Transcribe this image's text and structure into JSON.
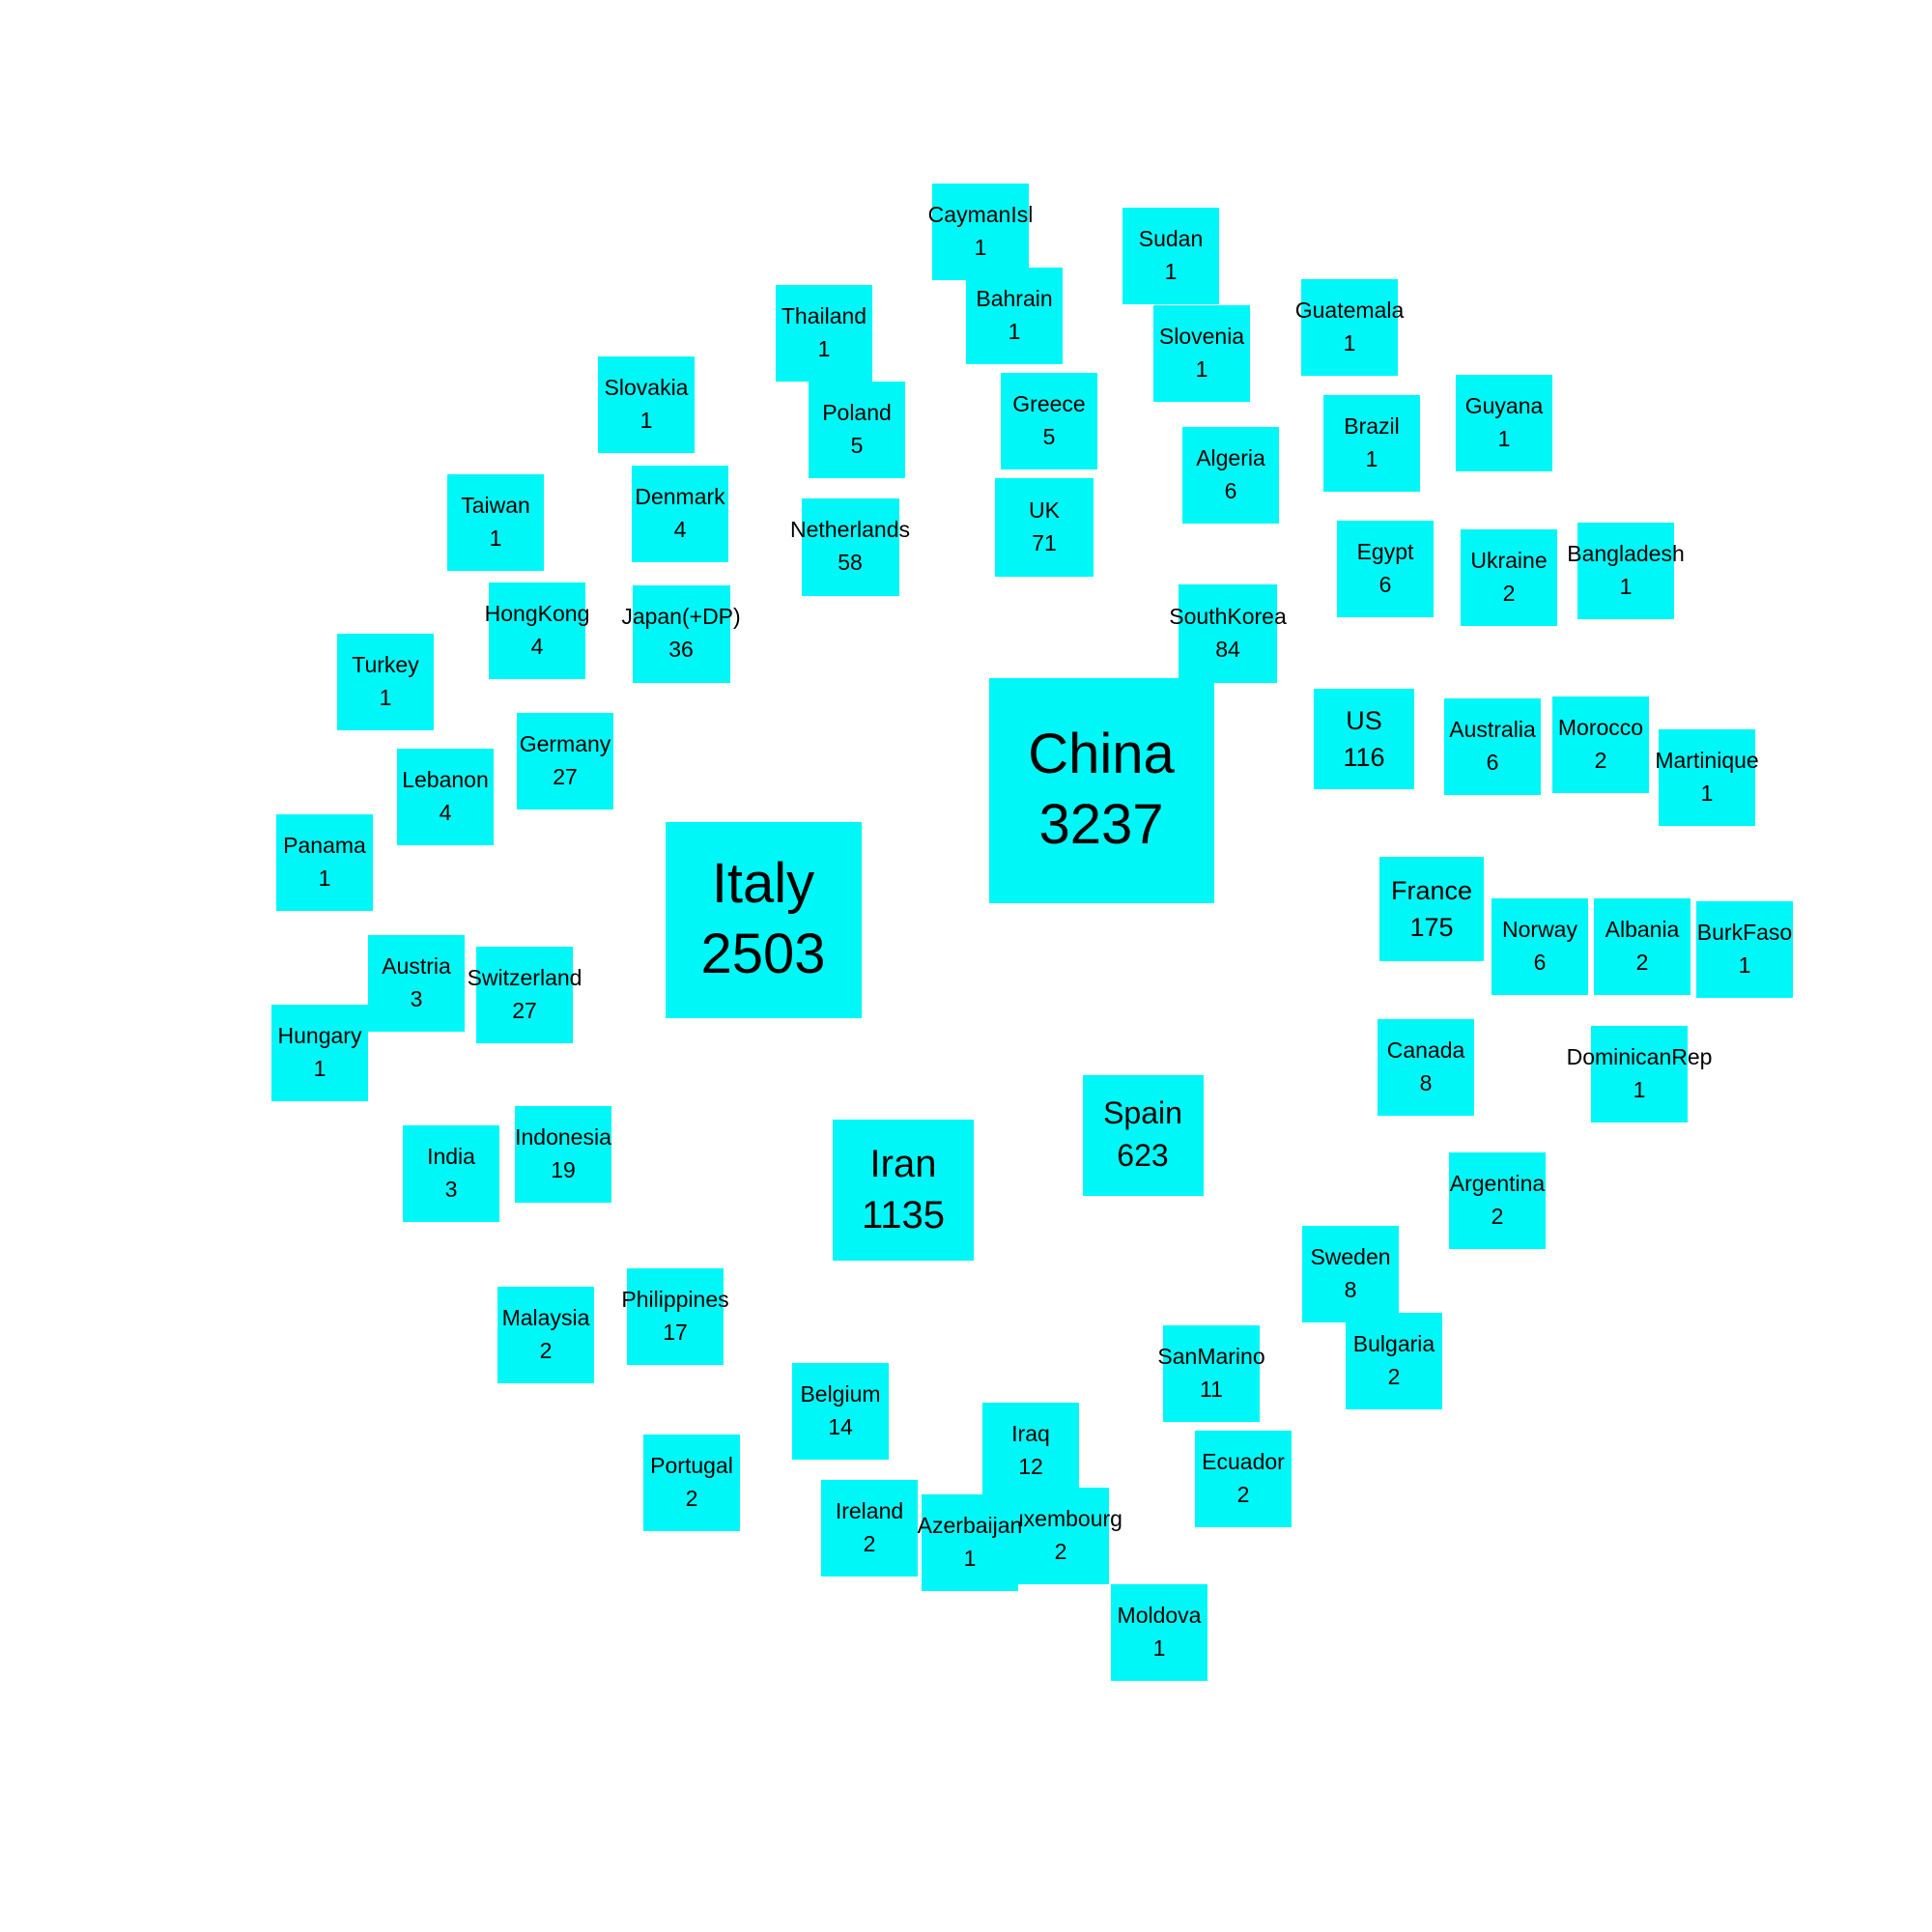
{
  "colors": {
    "node_fill": "#00f7f7",
    "background": "#ffffff",
    "text": "#000000"
  },
  "nodes": [
    {
      "name": "China",
      "value": 3237
    },
    {
      "name": "Italy",
      "value": 2503
    },
    {
      "name": "Iran",
      "value": 1135
    },
    {
      "name": "Spain",
      "value": 623
    },
    {
      "name": "France",
      "value": 175
    },
    {
      "name": "US",
      "value": 116
    },
    {
      "name": "SouthKorea",
      "value": 84
    },
    {
      "name": "UK",
      "value": 71
    },
    {
      "name": "Netherlands",
      "value": 58
    },
    {
      "name": "Japan(+DP)",
      "value": 36
    },
    {
      "name": "Germany",
      "value": 27
    },
    {
      "name": "Switzerland",
      "value": 27
    },
    {
      "name": "Indonesia",
      "value": 19
    },
    {
      "name": "Philippines",
      "value": 17
    },
    {
      "name": "Belgium",
      "value": 14
    },
    {
      "name": "Iraq",
      "value": 12
    },
    {
      "name": "SanMarino",
      "value": 11
    },
    {
      "name": "Canada",
      "value": 8
    },
    {
      "name": "Sweden",
      "value": 8
    },
    {
      "name": "Algeria",
      "value": 6
    },
    {
      "name": "Egypt",
      "value": 6
    },
    {
      "name": "Australia",
      "value": 6
    },
    {
      "name": "Norway",
      "value": 6
    },
    {
      "name": "Poland",
      "value": 5
    },
    {
      "name": "Greece",
      "value": 5
    },
    {
      "name": "Denmark",
      "value": 4
    },
    {
      "name": "HongKong",
      "value": 4
    },
    {
      "name": "Lebanon",
      "value": 4
    },
    {
      "name": "Austria",
      "value": 3
    },
    {
      "name": "India",
      "value": 3
    },
    {
      "name": "Ukraine",
      "value": 2
    },
    {
      "name": "Morocco",
      "value": 2
    },
    {
      "name": "Albania",
      "value": 2
    },
    {
      "name": "Argentina",
      "value": 2
    },
    {
      "name": "Bulgaria",
      "value": 2
    },
    {
      "name": "Ecuador",
      "value": 2
    },
    {
      "name": "Luxembourg",
      "value": 2
    },
    {
      "name": "Ireland",
      "value": 2
    },
    {
      "name": "Portugal",
      "value": 2
    },
    {
      "name": "Malaysia",
      "value": 2
    },
    {
      "name": "CaymanIsl",
      "value": 1
    },
    {
      "name": "Sudan",
      "value": 1
    },
    {
      "name": "Bahrain",
      "value": 1
    },
    {
      "name": "Thailand",
      "value": 1
    },
    {
      "name": "Slovenia",
      "value": 1
    },
    {
      "name": "Guatemala",
      "value": 1
    },
    {
      "name": "Slovakia",
      "value": 1
    },
    {
      "name": "Brazil",
      "value": 1
    },
    {
      "name": "Guyana",
      "value": 1
    },
    {
      "name": "Taiwan",
      "value": 1
    },
    {
      "name": "Bangladesh",
      "value": 1
    },
    {
      "name": "Turkey",
      "value": 1
    },
    {
      "name": "Martinique",
      "value": 1
    },
    {
      "name": "Panama",
      "value": 1
    },
    {
      "name": "BurkFaso",
      "value": 1
    },
    {
      "name": "Hungary",
      "value": 1
    },
    {
      "name": "DominicanRep",
      "value": 1
    },
    {
      "name": "Azerbaijan",
      "value": 1
    },
    {
      "name": "Moldova",
      "value": 1
    }
  ]
}
